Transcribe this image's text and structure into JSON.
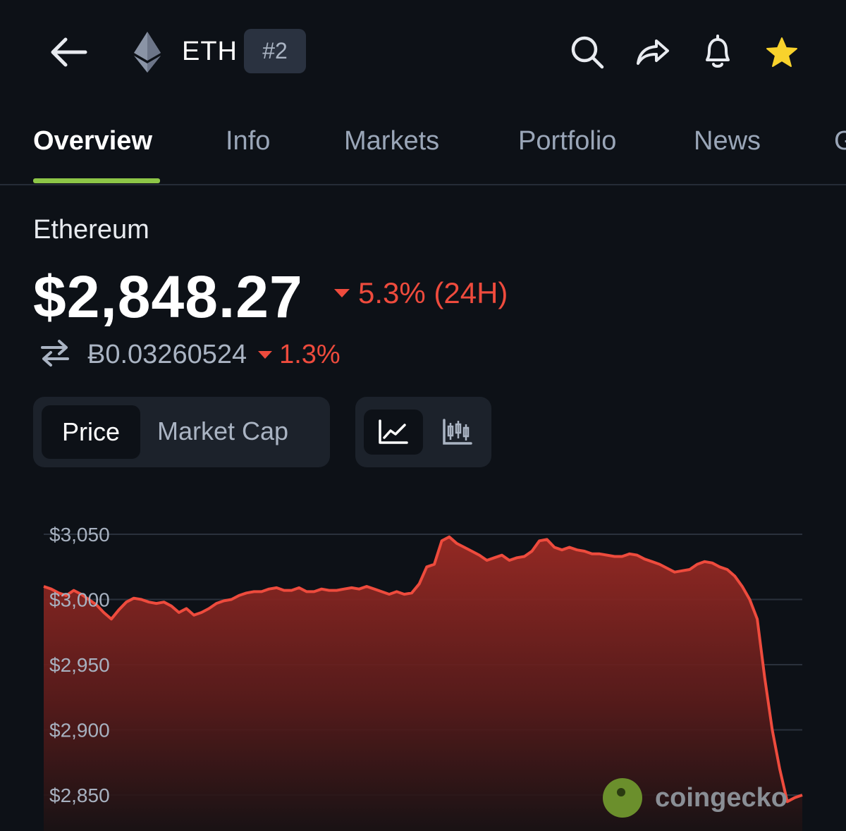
{
  "header": {
    "coin_symbol": "ETH",
    "rank": "#2",
    "icons": {
      "back": "back-arrow-icon",
      "logo": "ethereum-logo-icon",
      "search": "search-icon",
      "share": "share-icon",
      "alert": "bell-icon",
      "favorite": "star-icon"
    },
    "favorite_color": "#f8d22c"
  },
  "tabs": [
    {
      "label": "Overview",
      "active": true
    },
    {
      "label": "Info",
      "active": false
    },
    {
      "label": "Markets",
      "active": false
    },
    {
      "label": "Portfolio",
      "active": false
    },
    {
      "label": "News",
      "active": false
    },
    {
      "label": "G",
      "active": false
    }
  ],
  "coin": {
    "name": "Ethereum",
    "price": "$2,848.27",
    "change_24h": "5.3% (24H)",
    "btc_price": "Ƀ0.03260524",
    "btc_change": "1.3%"
  },
  "controls": {
    "metric_options": [
      "Price",
      "Market Cap"
    ],
    "metric_selected": "Price",
    "chart_types": [
      "line-chart-icon",
      "candlestick-chart-icon"
    ],
    "chart_type_selected": "line-chart-icon"
  },
  "colors": {
    "accent_green": "#8dc647",
    "negative_red": "#ee4b3d",
    "background": "#0d1117"
  },
  "watermark": {
    "text": "coingecko",
    "logo": "coingecko-logo-icon"
  },
  "chart_data": {
    "type": "area",
    "x_label": "",
    "y_label": "",
    "y_ticks": [
      "$3,050",
      "$3,000",
      "$2,950",
      "$2,900",
      "$2,850"
    ],
    "y_tick_values": [
      3050,
      3000,
      2950,
      2900,
      2850
    ],
    "ylim": [
      2838,
      3058
    ],
    "grid": true,
    "series": [
      {
        "values": [
          3010,
          3008,
          3005,
          3003,
          3007,
          3004,
          3000,
          2996,
          2990,
          2985,
          2992,
          2998,
          3001,
          3000,
          2998,
          2997,
          2998,
          2995,
          2990,
          2993,
          2988,
          2990,
          2993,
          2997,
          2999,
          3000,
          3003,
          3005,
          3006,
          3006,
          3008,
          3009,
          3007,
          3007,
          3009,
          3006,
          3006,
          3008,
          3007,
          3007,
          3008,
          3009,
          3008,
          3010,
          3008,
          3006,
          3004,
          3006,
          3004,
          3005,
          3012,
          3025,
          3027,
          3045,
          3048,
          3043,
          3040,
          3037,
          3034,
          3030,
          3032,
          3034,
          3030,
          3032,
          3033,
          3037,
          3045,
          3046,
          3040,
          3038,
          3040,
          3038,
          3037,
          3035,
          3035,
          3034,
          3033,
          3033,
          3035,
          3034,
          3031,
          3029,
          3027,
          3024,
          3021,
          3022,
          3023,
          3027,
          3029,
          3028,
          3025,
          3023,
          3018,
          3010,
          3000,
          2985,
          2940,
          2900,
          2870,
          2845,
          2848,
          2850
        ]
      }
    ]
  }
}
